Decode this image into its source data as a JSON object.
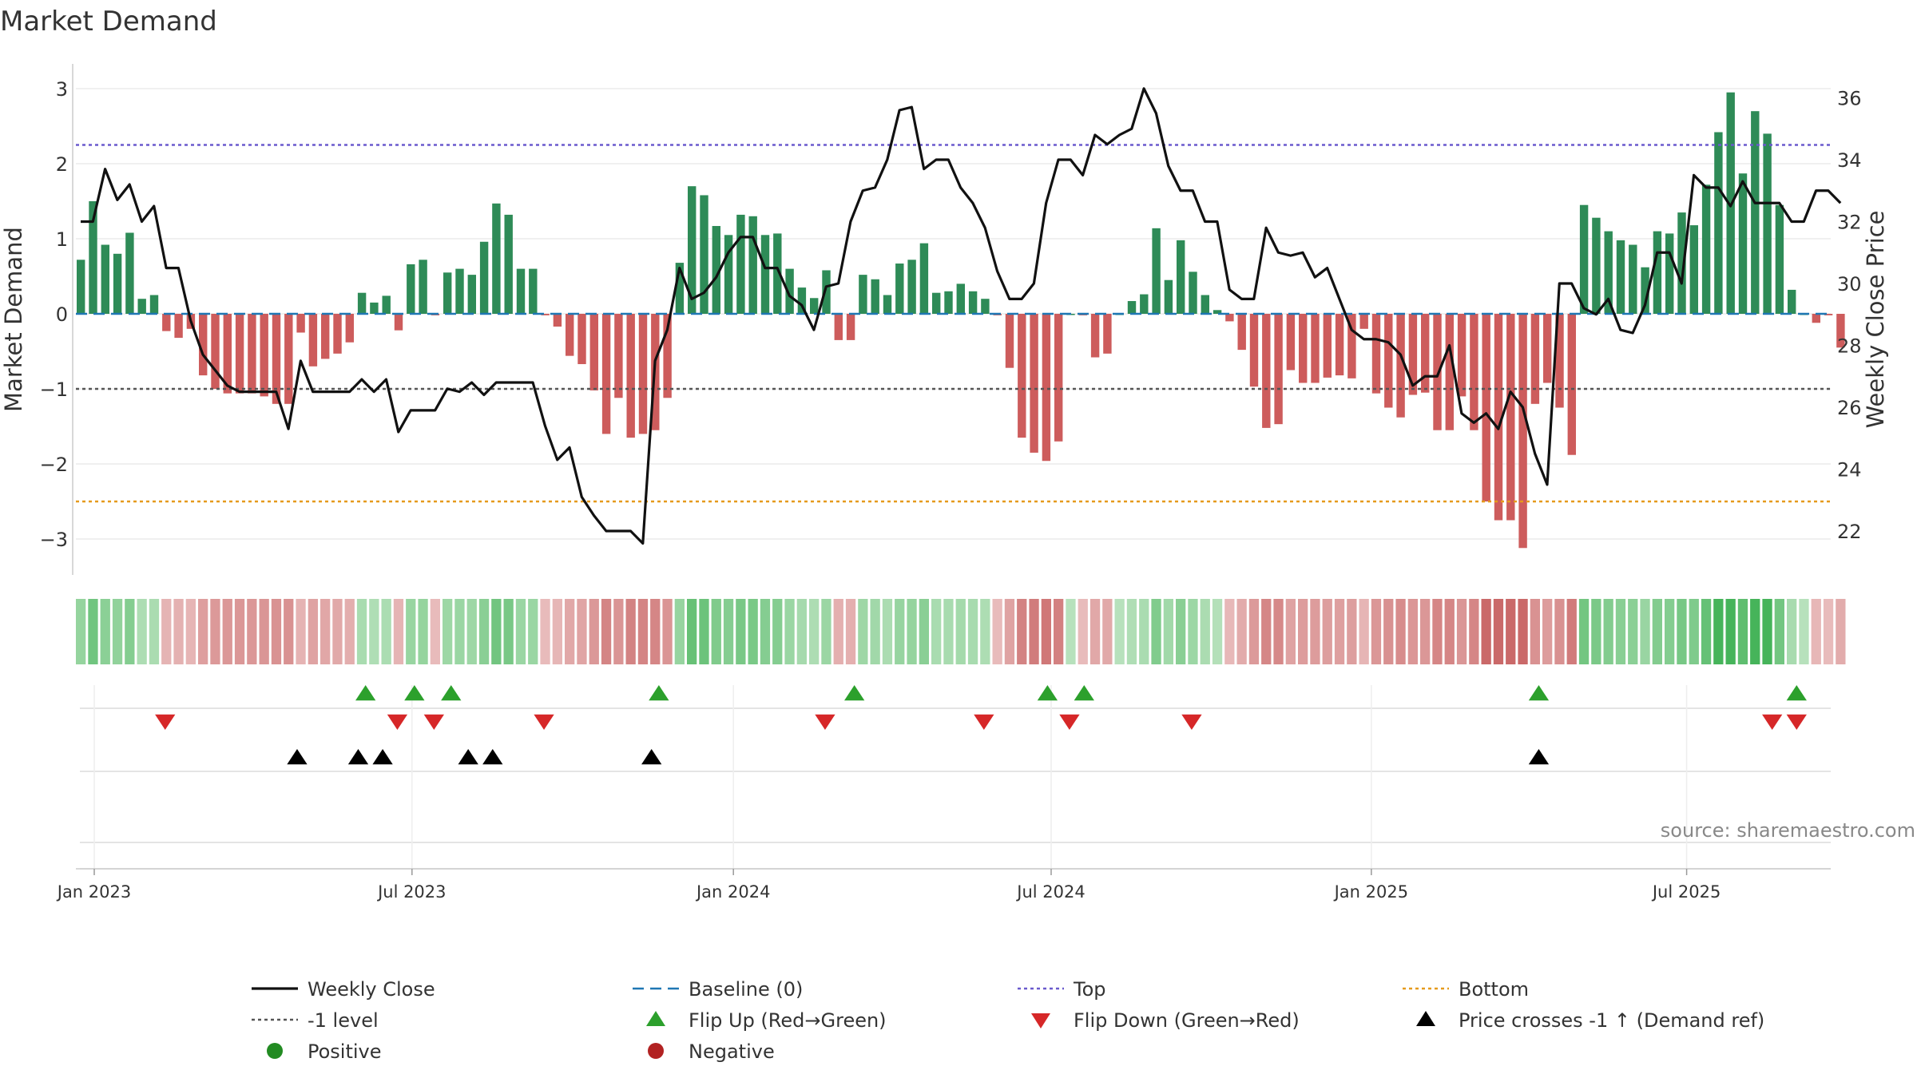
{
  "chart_data": {
    "type": "bar",
    "title": "Market Demand",
    "ylabel": "Market Demand",
    "y2label": "Weekly Close Price",
    "ylim": [
      -3.4,
      3.3
    ],
    "y2lim": [
      21.0,
      37.0
    ],
    "yticks": [
      "3",
      "2",
      "1",
      "0",
      "−1",
      "−2",
      "−3"
    ],
    "yticks_values": [
      3,
      2,
      1,
      0,
      -1,
      -2,
      -3
    ],
    "y2ticks": [
      "36",
      "34",
      "32",
      "30",
      "28",
      "26",
      "24",
      "22"
    ],
    "y2ticks_values": [
      36,
      34,
      32,
      30,
      28,
      26,
      24,
      22
    ],
    "x_ticks": [
      "Jan 2023",
      "Jul 2023",
      "Jan 2024",
      "Jul 2024",
      "Jan 2025",
      "Jul 2025"
    ],
    "x_tick_weeks": [
      0,
      26,
      52.3,
      78.3,
      104.5,
      130.3
    ],
    "demand": [
      0.72,
      1.5,
      0.92,
      0.8,
      1.08,
      0.2,
      0.25,
      -0.23,
      -0.32,
      -0.2,
      -0.82,
      -1.0,
      -1.06,
      -1.06,
      -1.06,
      -1.1,
      -1.2,
      -1.2,
      -0.25,
      -0.7,
      -0.6,
      -0.53,
      -0.38,
      0.28,
      0.15,
      0.24,
      -0.22,
      0.66,
      0.72,
      -0.02,
      0.55,
      0.6,
      0.52,
      0.96,
      1.47,
      1.32,
      0.6,
      0.6,
      -0.02,
      -0.17,
      -0.56,
      -0.67,
      -1.02,
      -1.6,
      -1.12,
      -1.65,
      -1.6,
      -1.55,
      -1.12,
      0.68,
      1.7,
      1.58,
      1.17,
      1.05,
      1.32,
      1.3,
      1.05,
      1.07,
      0.6,
      0.35,
      0.21,
      0.58,
      -0.35,
      -0.35,
      0.52,
      0.46,
      0.25,
      0.67,
      0.72,
      0.94,
      0.28,
      0.3,
      0.4,
      0.3,
      0.2,
      -0.02,
      -0.72,
      -1.65,
      -1.85,
      -1.96,
      -1.7,
      0.0,
      -0.02,
      -0.58,
      -0.53,
      0.0,
      0.17,
      0.26,
      1.14,
      0.45,
      0.98,
      0.56,
      0.25,
      0.05,
      -0.1,
      -0.48,
      -0.97,
      -1.52,
      -1.47,
      -0.75,
      -0.92,
      -0.92,
      -0.85,
      -0.82,
      -0.86,
      -0.2,
      -1.06,
      -1.25,
      -1.38,
      -1.08,
      -1.05,
      -1.55,
      -1.55,
      -1.1,
      -1.55,
      -2.5,
      -2.75,
      -2.75,
      -3.12,
      -1.2,
      -0.92,
      -1.25,
      -1.88,
      1.45,
      1.28,
      1.1,
      0.98,
      0.92,
      0.62,
      1.1,
      1.07,
      1.35,
      1.18,
      1.72,
      2.42,
      2.95,
      1.87,
      2.7,
      2.4,
      1.45,
      0.32,
      0.0,
      -0.12,
      -0.02,
      -0.45
    ],
    "weekly_close": [
      32.0,
      32.0,
      33.7,
      32.7,
      33.2,
      32.0,
      32.5,
      30.5,
      30.5,
      28.8,
      27.7,
      27.2,
      26.7,
      26.5,
      26.5,
      26.5,
      26.5,
      25.3,
      27.5,
      26.5,
      26.5,
      26.5,
      26.5,
      26.9,
      26.5,
      26.9,
      25.2,
      25.9,
      25.9,
      25.9,
      26.6,
      26.5,
      26.8,
      26.4,
      26.8,
      26.8,
      26.8,
      26.8,
      25.4,
      24.3,
      24.7,
      23.1,
      22.5,
      22.0,
      22.0,
      22.0,
      21.6,
      27.5,
      28.5,
      30.5,
      29.5,
      29.7,
      30.2,
      31.0,
      31.5,
      31.5,
      30.5,
      30.5,
      29.6,
      29.3,
      28.5,
      29.9,
      30.0,
      32.0,
      33.0,
      33.1,
      34.0,
      35.6,
      35.7,
      33.7,
      34.0,
      34.0,
      33.1,
      32.6,
      31.8,
      30.4,
      29.5,
      29.5,
      30.0,
      32.6,
      34.0,
      34.0,
      33.5,
      34.8,
      34.5,
      34.8,
      35.0,
      36.3,
      35.5,
      33.8,
      33.0,
      33.0,
      32.0,
      32.0,
      29.8,
      29.5,
      29.5,
      31.8,
      31.0,
      30.9,
      31.0,
      30.2,
      30.5,
      29.5,
      28.5,
      28.2,
      28.2,
      28.1,
      27.7,
      26.7,
      27.0,
      27.0,
      28.0,
      25.8,
      25.5,
      25.8,
      25.3,
      26.5,
      26.0,
      24.5,
      23.5,
      30.0,
      30.0,
      29.2,
      29.0,
      29.5,
      28.5,
      28.4,
      29.3,
      31.0,
      31.0,
      30.0,
      33.5,
      33.1,
      33.1,
      32.5,
      33.3,
      32.6,
      32.6,
      32.6,
      32.0,
      32.0,
      33.0,
      33.0,
      32.6
    ],
    "levels": {
      "top": 2.25,
      "minus_one": -1.0,
      "bottom": -2.5,
      "baseline": 0
    },
    "flip_up_weeks": [
      22.2,
      26.2,
      29.2,
      46.2,
      62.2,
      78.0,
      81.0,
      118.2,
      139.3
    ],
    "flip_down_weeks": [
      5.8,
      24.8,
      27.8,
      36.8,
      59.8,
      72.8,
      79.8,
      89.8,
      137.3,
      139.3
    ],
    "price_cross_weeks": [
      16.6,
      21.6,
      23.6,
      30.6,
      32.6,
      45.6,
      118.2
    ],
    "legend": [
      {
        "label": "Weekly Close",
        "key": "line-black"
      },
      {
        "label": "Baseline (0)",
        "key": "dash-blue"
      },
      {
        "label": "Top",
        "key": "dot-purple"
      },
      {
        "label": "Bottom",
        "key": "dot-orange"
      },
      {
        "label": "-1 level",
        "key": "dot-gray"
      },
      {
        "label": "Flip Up (Red→Green)",
        "key": "tri-up-green"
      },
      {
        "label": "Flip Down (Green→Red)",
        "key": "tri-down-red"
      },
      {
        "label": "Price crosses -1 ↑ (Demand ref)",
        "key": "tri-up-black"
      },
      {
        "label": "Positive",
        "key": "circle-green"
      },
      {
        "label": "Negative",
        "key": "circle-red"
      }
    ],
    "source": "source: sharemaestro.com"
  },
  "colors": {
    "positive": "#2e8b57",
    "negative": "#cd5c5c",
    "line": "#111111",
    "baseline": "#1f77b4",
    "top": "#6a5acd",
    "bottom": "#e69a1c",
    "minus_one": "#555555",
    "flip_up": "#2ca02c",
    "flip_down": "#d62728",
    "legend_pos": "#228b22",
    "legend_neg": "#b22222"
  }
}
